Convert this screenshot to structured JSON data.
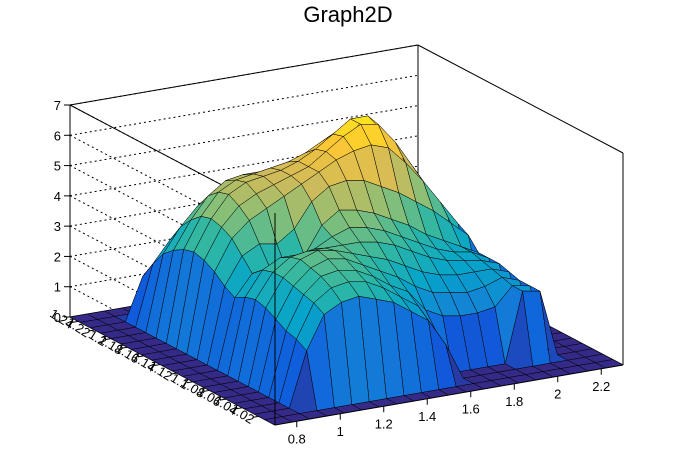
{
  "chart_data": {
    "type": "surface",
    "title": "Graph2D",
    "xlabel": "",
    "ylabel": "",
    "zlabel": "",
    "x_ticks": [
      "0.8",
      "1",
      "1.2",
      "1.4",
      "1.6",
      "1.8",
      "2",
      "2.2"
    ],
    "y_ticks": [
      "1.02",
      "1.04",
      "1.06",
      "1.08",
      "1.1",
      "1.12",
      "1.14",
      "1.16",
      "1.18",
      "1.2",
      "1.22",
      "1.24"
    ],
    "z_ticks": [
      "0",
      "1",
      "2",
      "3",
      "4",
      "5",
      "6",
      "7"
    ],
    "xlim": [
      0.7,
      2.3
    ],
    "ylim": [
      1.0,
      1.25
    ],
    "zlim": [
      0,
      7
    ],
    "x": [
      0.7,
      0.78,
      0.86,
      0.94,
      1.02,
      1.1,
      1.18,
      1.26,
      1.34,
      1.42,
      1.5,
      1.58,
      1.66,
      1.74,
      1.82,
      1.9,
      1.98,
      2.06,
      2.14,
      2.22,
      2.3
    ],
    "y": [
      1.0,
      1.0125,
      1.025,
      1.0375,
      1.05,
      1.0625,
      1.075,
      1.0875,
      1.1,
      1.1125,
      1.125,
      1.1375,
      1.15,
      1.1625,
      1.175,
      1.1875,
      1.2,
      1.2125,
      1.225,
      1.2375,
      1.25
    ],
    "z": [
      [
        0,
        0,
        0,
        0,
        0,
        0,
        0,
        0,
        0,
        0,
        0,
        0,
        0,
        0,
        0,
        0,
        0,
        0,
        0,
        0,
        0
      ],
      [
        0,
        0,
        0,
        0,
        0,
        0,
        0,
        0,
        0,
        0,
        0,
        0,
        0,
        0,
        0,
        0,
        0,
        0,
        0,
        0,
        0
      ],
      [
        0,
        0,
        0,
        1.8,
        2.9,
        3.2,
        3.3,
        3.1,
        2.9,
        2.5,
        2.1,
        1.2,
        0,
        0,
        0,
        0,
        0,
        0,
        0,
        0,
        0
      ],
      [
        0,
        0,
        0,
        2.0,
        3.1,
        3.5,
        3.6,
        3.5,
        3.2,
        2.8,
        2.4,
        1.5,
        0,
        0,
        0,
        0,
        2.3,
        2.2,
        0,
        0,
        0
      ],
      [
        0,
        0,
        0,
        2.1,
        3.2,
        3.7,
        3.8,
        3.7,
        3.4,
        3.0,
        2.7,
        2.0,
        1.7,
        1.6,
        1.6,
        1.7,
        2.3,
        2.2,
        0,
        0,
        0
      ],
      [
        0,
        0,
        0,
        2.3,
        3.3,
        3.8,
        4.0,
        3.9,
        3.6,
        3.3,
        3.0,
        2.6,
        2.3,
        2.2,
        2.1,
        2.2,
        2.4,
        2.2,
        0,
        0,
        0
      ],
      [
        0,
        0,
        0,
        2.5,
        3.4,
        3.9,
        4.1,
        4.0,
        3.8,
        3.6,
        3.4,
        3.1,
        2.8,
        2.6,
        2.5,
        2.5,
        2.5,
        2.3,
        0,
        0,
        0
      ],
      [
        0,
        0,
        0,
        2.6,
        3.4,
        3.8,
        3.9,
        3.9,
        3.9,
        3.9,
        3.8,
        3.6,
        3.3,
        3.0,
        2.8,
        2.7,
        2.6,
        2.4,
        0,
        0,
        0
      ],
      [
        0,
        0,
        0,
        2.5,
        3.3,
        3.6,
        3.6,
        3.7,
        4.0,
        4.2,
        4.1,
        3.9,
        3.6,
        3.3,
        3.0,
        2.8,
        2.7,
        2.4,
        0,
        0,
        0
      ],
      [
        0,
        0,
        0,
        2.3,
        3.0,
        3.1,
        2.9,
        3.3,
        4.2,
        4.6,
        4.5,
        4.3,
        4.0,
        3.7,
        3.3,
        3.0,
        2.7,
        2.4,
        0,
        0,
        0
      ],
      [
        0,
        0,
        0,
        2.5,
        3.4,
        3.7,
        3.6,
        4.0,
        4.8,
        5.2,
        5.3,
        5.2,
        4.9,
        4.6,
        4.2,
        3.8,
        3.3,
        2.8,
        0,
        0,
        0
      ],
      [
        0,
        0,
        0,
        2.8,
        3.8,
        4.3,
        4.6,
        4.9,
        5.2,
        5.5,
        5.8,
        6.0,
        6.1,
        5.9,
        5.3,
        4.6,
        3.8,
        3.0,
        0,
        0,
        0
      ],
      [
        0,
        0,
        0,
        3.0,
        4.0,
        4.6,
        4.9,
        5.1,
        5.3,
        5.5,
        5.9,
        6.3,
        6.6,
        6.5,
        5.8,
        4.9,
        4.0,
        3.1,
        0,
        0,
        0
      ],
      [
        0,
        0,
        0,
        3.1,
        4.1,
        4.8,
        5.1,
        5.2,
        5.3,
        5.5,
        5.8,
        6.2,
        6.6,
        6.6,
        5.9,
        5.0,
        4.0,
        3.0,
        0,
        0,
        0
      ],
      [
        0,
        0,
        0,
        3.0,
        4.0,
        4.7,
        5.0,
        5.1,
        5.2,
        5.3,
        5.5,
        5.8,
        6.1,
        6.1,
        5.5,
        4.7,
        3.8,
        2.8,
        0,
        0,
        0
      ],
      [
        0,
        0,
        0,
        2.8,
        3.7,
        4.4,
        4.8,
        4.9,
        4.9,
        5.0,
        5.1,
        5.3,
        5.5,
        5.4,
        4.9,
        4.2,
        3.4,
        2.5,
        0,
        0,
        0
      ],
      [
        0,
        0,
        0,
        2.5,
        3.3,
        3.9,
        4.2,
        4.3,
        4.4,
        4.5,
        4.6,
        4.7,
        4.8,
        4.7,
        4.3,
        3.7,
        3.0,
        2.2,
        0,
        0,
        0
      ],
      [
        0,
        0,
        0,
        2.0,
        2.7,
        3.2,
        3.5,
        3.6,
        3.7,
        3.8,
        3.9,
        4.0,
        4.0,
        3.9,
        3.6,
        3.1,
        2.5,
        1.8,
        0,
        0,
        0
      ],
      [
        0,
        0,
        0,
        1.4,
        2.0,
        2.4,
        2.6,
        2.7,
        2.8,
        2.9,
        3.0,
        3.0,
        3.0,
        2.9,
        2.7,
        2.3,
        1.8,
        1.3,
        0,
        0,
        0
      ],
      [
        0,
        0,
        0,
        0,
        0,
        0,
        0,
        0,
        0,
        0,
        0,
        0,
        0,
        0,
        0,
        0,
        0,
        0,
        0,
        0,
        0
      ],
      [
        0,
        0,
        0,
        0,
        0,
        0,
        0,
        0,
        0,
        0,
        0,
        0,
        0,
        0,
        0,
        0,
        0,
        0,
        0,
        0,
        0
      ]
    ],
    "colormap": [
      "#352a87",
      "#0f5cdd",
      "#1481d6",
      "#06a4ca",
      "#2eb7a4",
      "#87bf77",
      "#d1bb59",
      "#fec832",
      "#f9fb0e"
    ],
    "grid": true,
    "legend": "none"
  }
}
